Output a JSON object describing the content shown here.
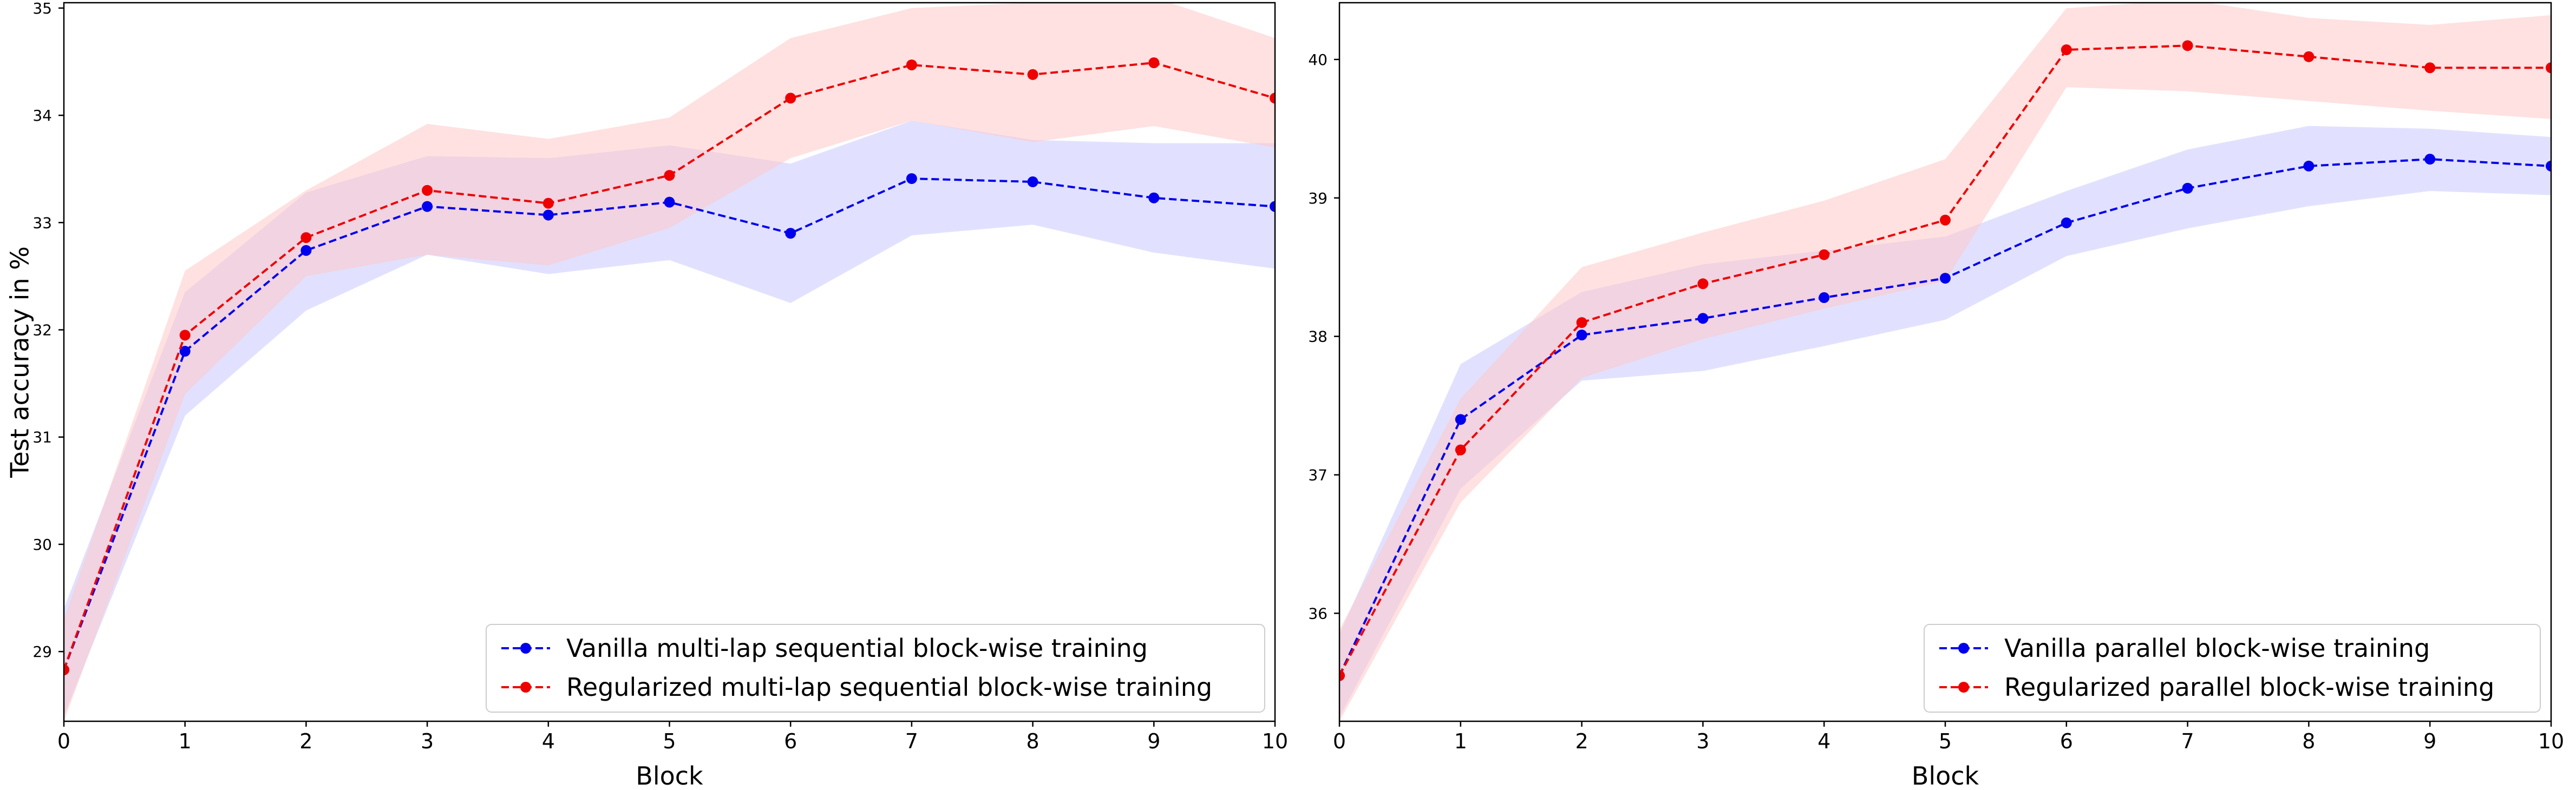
{
  "colors": {
    "vanilla": "#0000ee",
    "regularized": "#ee0000",
    "vanilla_band": "#c8c8ff",
    "regularized_band": "#ffc8c8"
  },
  "chart_data": [
    {
      "type": "line",
      "title": "",
      "xlabel": "Block",
      "ylabel": "Test accuracy in %",
      "x": [
        0,
        1,
        2,
        3,
        4,
        5,
        6,
        7,
        8,
        9,
        10
      ],
      "xticks": [
        "0",
        "1",
        "2",
        "3",
        "4",
        "5",
        "6",
        "7",
        "8",
        "9",
        "10"
      ],
      "yticks": [
        "29",
        "30",
        "31",
        "32",
        "33",
        "34",
        "35"
      ],
      "ytick_values": [
        29,
        30,
        31,
        32,
        33,
        34,
        35
      ],
      "xlim": [
        0,
        10
      ],
      "ylim": [
        28.35,
        35.05
      ],
      "legend_position": "lower-right",
      "series": [
        {
          "name": "Vanilla multi-lap sequential block-wise training",
          "color_key": "vanilla",
          "values": [
            28.83,
            31.8,
            32.74,
            33.15,
            33.07,
            33.19,
            32.9,
            33.41,
            33.38,
            33.23,
            33.15
          ],
          "lower": [
            28.4,
            31.2,
            32.18,
            32.7,
            32.52,
            32.65,
            32.25,
            32.88,
            32.98,
            32.72,
            32.57
          ],
          "upper": [
            29.4,
            32.35,
            33.28,
            33.62,
            33.6,
            33.72,
            33.55,
            33.95,
            33.77,
            33.74,
            33.74
          ]
        },
        {
          "name": "Regularized multi-lap sequential block-wise training",
          "color_key": "regularized",
          "values": [
            28.83,
            31.95,
            32.86,
            33.3,
            33.18,
            33.44,
            34.16,
            34.47,
            34.38,
            34.49,
            34.16
          ],
          "lower": [
            28.35,
            31.4,
            32.5,
            32.7,
            32.6,
            32.95,
            33.6,
            33.95,
            33.75,
            33.9,
            33.7
          ],
          "upper": [
            29.3,
            32.55,
            33.3,
            33.92,
            33.78,
            33.98,
            34.72,
            35.0,
            35.05,
            35.1,
            34.72
          ]
        }
      ]
    },
    {
      "type": "line",
      "title": "",
      "xlabel": "Block",
      "ylabel": "",
      "x": [
        0,
        1,
        2,
        3,
        4,
        5,
        6,
        7,
        8,
        9,
        10
      ],
      "xticks": [
        "0",
        "1",
        "2",
        "3",
        "4",
        "5",
        "6",
        "7",
        "8",
        "9",
        "10"
      ],
      "yticks": [
        "36",
        "37",
        "38",
        "39",
        "40"
      ],
      "ytick_values": [
        36,
        37,
        38,
        39,
        40
      ],
      "xlim": [
        0,
        10
      ],
      "ylim": [
        35.22,
        40.41
      ],
      "legend_position": "lower-right",
      "series": [
        {
          "name": "Vanilla parallel block-wise training",
          "color_key": "vanilla",
          "values": [
            35.55,
            37.4,
            38.01,
            38.13,
            38.28,
            38.42,
            38.82,
            39.07,
            39.23,
            39.28,
            39.23
          ],
          "lower": [
            35.25,
            36.9,
            37.68,
            37.75,
            37.93,
            38.12,
            38.58,
            38.78,
            38.94,
            39.05,
            39.02
          ],
          "upper": [
            35.85,
            37.8,
            38.32,
            38.52,
            38.62,
            38.72,
            39.05,
            39.35,
            39.52,
            39.5,
            39.44
          ]
        },
        {
          "name": "Regularized parallel block-wise training",
          "color_key": "regularized",
          "values": [
            35.55,
            37.18,
            38.1,
            38.38,
            38.59,
            38.84,
            40.07,
            40.1,
            40.02,
            39.94,
            39.94
          ],
          "lower": [
            35.22,
            36.8,
            37.7,
            37.98,
            38.2,
            38.4,
            39.8,
            39.77,
            39.7,
            39.63,
            39.57
          ],
          "upper": [
            35.88,
            37.55,
            38.5,
            38.75,
            38.98,
            39.28,
            40.37,
            40.43,
            40.3,
            40.25,
            40.32
          ]
        }
      ]
    }
  ]
}
